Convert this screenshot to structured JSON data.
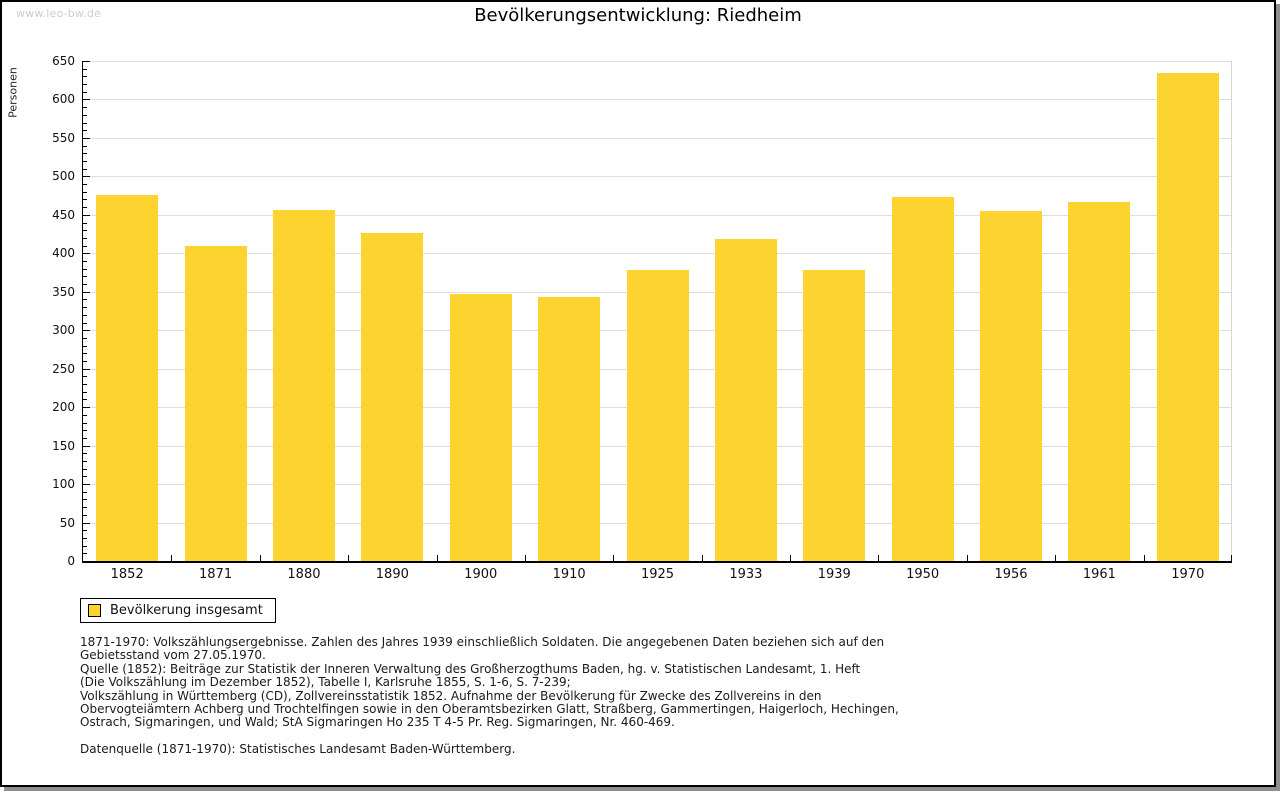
{
  "watermark": {
    "text": "www.leo-bw.de",
    "color": "#cccccc"
  },
  "title": "Bevölkerungsentwicklung: Riedheim",
  "chart_data": {
    "type": "bar",
    "title": "Bevölkerungsentwicklung: Riedheim",
    "xlabel": "",
    "ylabel": "Personen",
    "categories": [
      "1852",
      "1871",
      "1880",
      "1890",
      "1900",
      "1910",
      "1925",
      "1933",
      "1939",
      "1950",
      "1956",
      "1961",
      "1970"
    ],
    "series": [
      {
        "name": "Bevölkerung insgesamt",
        "color": "#FDD32F",
        "values": [
          476,
          409,
          456,
          426,
          347,
          343,
          378,
          418,
          378,
          473,
          455,
          467,
          635
        ]
      }
    ],
    "ylim": [
      0,
      650
    ],
    "ytick_step": 50,
    "y_minor_tick_step": 10,
    "grid": true,
    "grid_color": "#dedede",
    "legend_position": "bottom-left"
  },
  "legend": {
    "label": "Bevölkerung insgesamt",
    "swatch_color": "#FDD32F"
  },
  "footnotes": {
    "lines": [
      "1871-1970: Volkszählungsergebnisse. Zahlen des Jahres 1939 einschließlich Soldaten. Die angegebenen Daten beziehen sich auf den",
      "Gebietsstand vom 27.05.1970.",
      "Quelle (1852): Beiträge zur Statistik der Inneren Verwaltung des Großherzogthums Baden, hg. v. Statistischen Landesamt, 1. Heft",
      "(Die Volkszählung im Dezember 1852), Tabelle I, Karlsruhe 1855, S. 1-6, S. 7-239;",
      "Volkszählung in Württemberg (CD), Zollvereinsstatistik 1852. Aufnahme der Bevölkerung für Zwecke des Zollvereins in den",
      "Obervogteiämtern Achberg und Trochtelfingen sowie in den Oberamtsbezirken Glatt, Straßberg, Gammertingen, Haigerloch, Hechingen,",
      "Ostrach, Sigmaringen, und Wald; StA Sigmaringen Ho 235 T 4-5 Pr. Reg. Sigmaringen, Nr. 460-469."
    ],
    "datasource": "Datenquelle (1871-1970): Statistisches Landesamt Baden-Württemberg."
  },
  "colors": {
    "bar": "#FDD32F",
    "axis": "#000000",
    "grid": "#dedede",
    "watermark": "#cccccc",
    "background": "#ffffff"
  }
}
